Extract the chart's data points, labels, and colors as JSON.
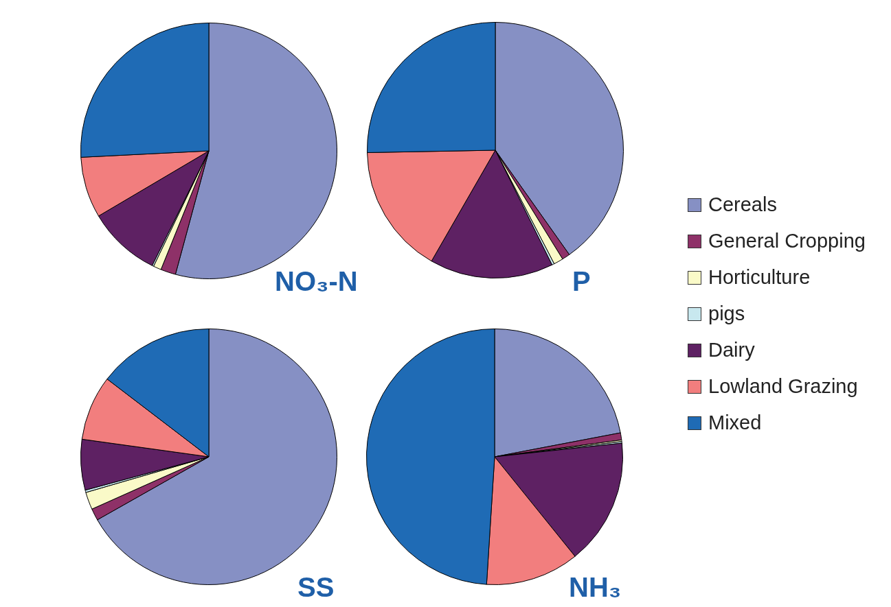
{
  "chart_data": [
    {
      "type": "pie",
      "title": "NO₃-N",
      "categories": [
        null,
        null,
        null,
        null,
        null,
        null,
        null
      ],
      "colors": [
        "#8690c4",
        "#8e3168",
        "#fafac8",
        "#c8e8ef",
        "#5e2163",
        "#f27e7e",
        "#1f6bb5"
      ],
      "values": [
        54.2,
        1.9,
        1.0,
        0.2,
        9.2,
        7.7,
        25.8
      ]
    },
    {
      "type": "pie",
      "title": "P",
      "categories": [
        "Cereals",
        "General Cropping",
        "Horticulture",
        "pigs",
        "Dairy",
        "Lowland Grazing",
        "Mixed"
      ],
      "colors": [
        "#8690c4",
        "#8e3168",
        "#fafac8",
        "#c8e8ef",
        "#5e2163",
        "#f27e7e",
        "#1f6bb5"
      ],
      "values": [
        40.2,
        1.0,
        1.2,
        0.3,
        15.6,
        16.4,
        25.3
      ],
      "legend": "right"
    },
    {
      "type": "pie",
      "title": "SS",
      "categories": [
        null,
        null,
        null,
        null,
        null,
        null,
        null
      ],
      "colors": [
        "#8690c4",
        "#8e3168",
        "#fafac8",
        "#c8e8ef",
        "#5e2163",
        "#f27e7e",
        "#1f6bb5"
      ],
      "values": [
        66.8,
        1.5,
        2.2,
        0.3,
        6.4,
        8.2,
        14.6
      ]
    },
    {
      "type": "pie",
      "title": "NH₃",
      "categories": [
        null,
        null,
        null,
        null,
        null,
        null,
        null
      ],
      "colors": [
        "#8690c4",
        "#8e3168",
        "#fafac8",
        "#c8e8ef",
        "#5e2163",
        "#f27e7e",
        "#1f6bb5"
      ],
      "values": [
        22.0,
        0.9,
        0.2,
        0.2,
        15.9,
        11.8,
        49.0
      ]
    }
  ]
}
